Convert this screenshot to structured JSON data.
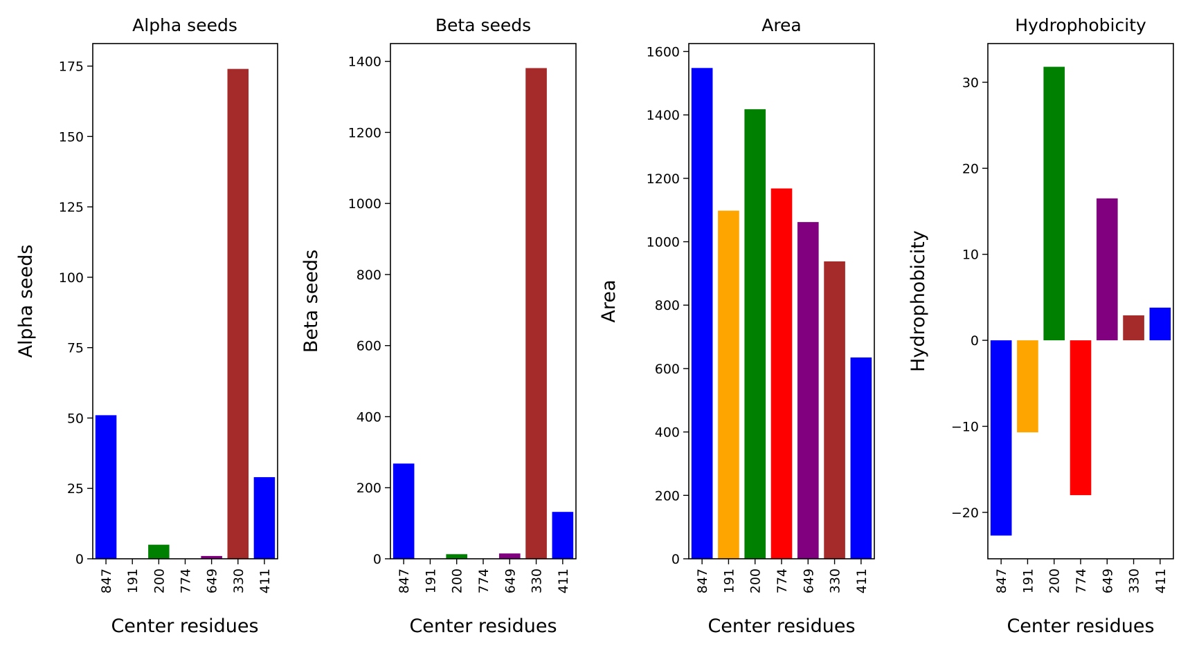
{
  "chart_data": [
    {
      "type": "bar",
      "title": "Alpha seeds",
      "xlabel": "Center residues",
      "ylabel": "Alpha seeds",
      "categories": [
        "847",
        "191",
        "200",
        "774",
        "649",
        "330",
        "411"
      ],
      "values": [
        51,
        0,
        5,
        0,
        1,
        174,
        29
      ],
      "colors": [
        "#0000ff",
        "#ffa500",
        "#008000",
        "#ff0000",
        "#800080",
        "#a52a2a",
        "#0000ff"
      ],
      "ylim": [
        0,
        183
      ],
      "yticks": [
        0,
        25,
        50,
        75,
        100,
        125,
        150,
        175
      ],
      "yticklabels": [
        "0",
        "25",
        "50",
        "75",
        "100",
        "125",
        "150",
        "175"
      ],
      "grid": false
    },
    {
      "type": "bar",
      "title": "Beta seeds",
      "xlabel": "Center residues",
      "ylabel": "Beta seeds",
      "categories": [
        "847",
        "191",
        "200",
        "774",
        "649",
        "330",
        "411"
      ],
      "values": [
        268,
        0,
        13,
        0,
        15,
        1381,
        132
      ],
      "colors": [
        "#0000ff",
        "#ffa500",
        "#008000",
        "#ff0000",
        "#800080",
        "#a52a2a",
        "#0000ff"
      ],
      "ylim": [
        0,
        1450
      ],
      "yticks": [
        0,
        200,
        400,
        600,
        800,
        1000,
        1200,
        1400
      ],
      "yticklabels": [
        "0",
        "200",
        "400",
        "600",
        "800",
        "1000",
        "1200",
        "1400"
      ],
      "grid": false
    },
    {
      "type": "bar",
      "title": "Area",
      "xlabel": "Center residues",
      "ylabel": "Area",
      "categories": [
        "847",
        "191",
        "200",
        "774",
        "649",
        "330",
        "411"
      ],
      "values": [
        1548,
        1098,
        1418,
        1168,
        1062,
        938,
        635
      ],
      "colors": [
        "#0000ff",
        "#ffa500",
        "#008000",
        "#ff0000",
        "#800080",
        "#a52a2a",
        "#0000ff"
      ],
      "ylim": [
        0,
        1625
      ],
      "yticks": [
        0,
        200,
        400,
        600,
        800,
        1000,
        1200,
        1400,
        1600
      ],
      "yticklabels": [
        "0",
        "200",
        "400",
        "600",
        "800",
        "1000",
        "1200",
        "1400",
        "1600"
      ],
      "grid": false
    },
    {
      "type": "bar",
      "title": "Hydrophobicity",
      "xlabel": "Center residues",
      "ylabel": "Hydrophobicity",
      "categories": [
        "847",
        "191",
        "200",
        "774",
        "649",
        "330",
        "411"
      ],
      "values": [
        -22.7,
        -10.7,
        31.8,
        -18.0,
        16.5,
        2.9,
        3.8
      ],
      "colors": [
        "#0000ff",
        "#ffa500",
        "#008000",
        "#ff0000",
        "#800080",
        "#a52a2a",
        "#0000ff"
      ],
      "ylim": [
        -25.4,
        34.5
      ],
      "yticks": [
        -20,
        -10,
        0,
        10,
        20,
        30
      ],
      "yticklabels": [
        "−20",
        "−10",
        "0",
        "10",
        "20",
        "30"
      ],
      "grid": false
    }
  ]
}
